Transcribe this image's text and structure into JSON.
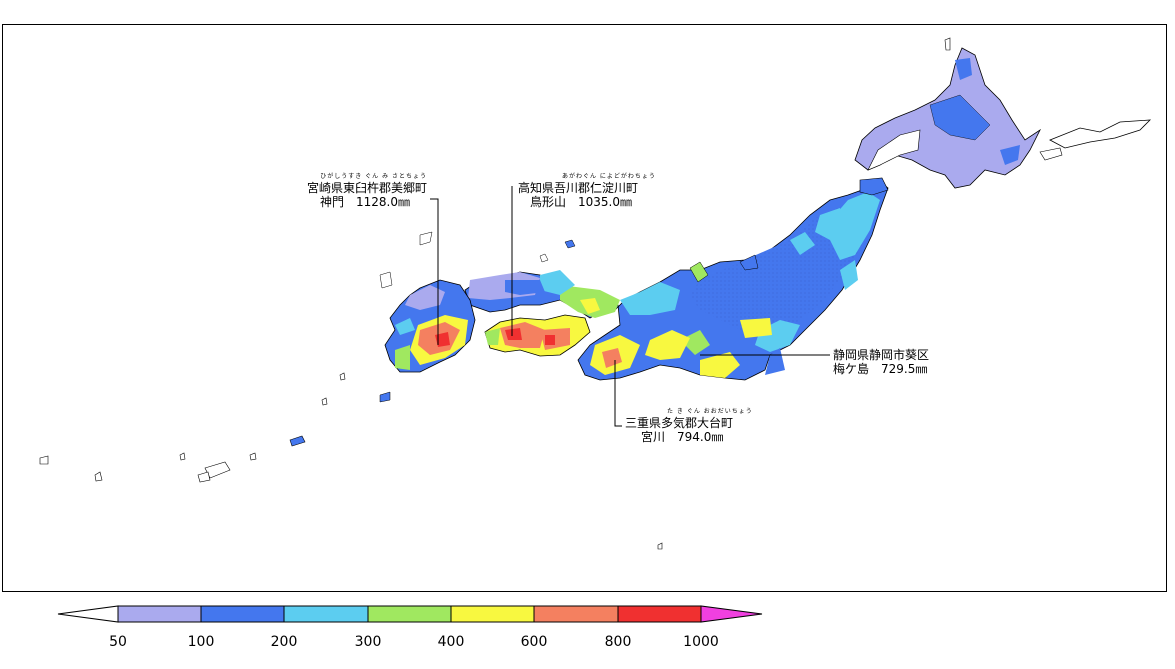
{
  "annotations": [
    {
      "id": "miyazaki",
      "ruby": "ひがしうすき ぐん み さとちょう",
      "line1": "宮崎県東臼杵郡美郷町",
      "line2": "神門　1128.0㎜"
    },
    {
      "id": "kochi",
      "ruby": "あがわぐん によどがわちょう",
      "line1": "高知県吾川郡仁淀川町",
      "line2": "鳥形山　1035.0㎜"
    },
    {
      "id": "shizuoka",
      "line1": "静岡県静岡市葵区",
      "line2": "梅ケ島　729.5㎜"
    },
    {
      "id": "mie",
      "ruby": "た き ぐん おおだいちょう",
      "line1": "三重県多気郡大台町",
      "line2": "宮川　794.0㎜"
    }
  ],
  "colorbar": {
    "ticks": [
      "50",
      "100",
      "200",
      "300",
      "400",
      "600",
      "800",
      "1000"
    ],
    "colors": {
      "below": "#ffffff",
      "b50_100": "#aaaaee",
      "b100_200": "#4477ee",
      "b200_300": "#5ccdf0",
      "b300_400": "#a0e860",
      "b400_600": "#f8f840",
      "b600_800": "#f48060",
      "b800_1000": "#f03030",
      "above": "#f040e0"
    }
  }
}
